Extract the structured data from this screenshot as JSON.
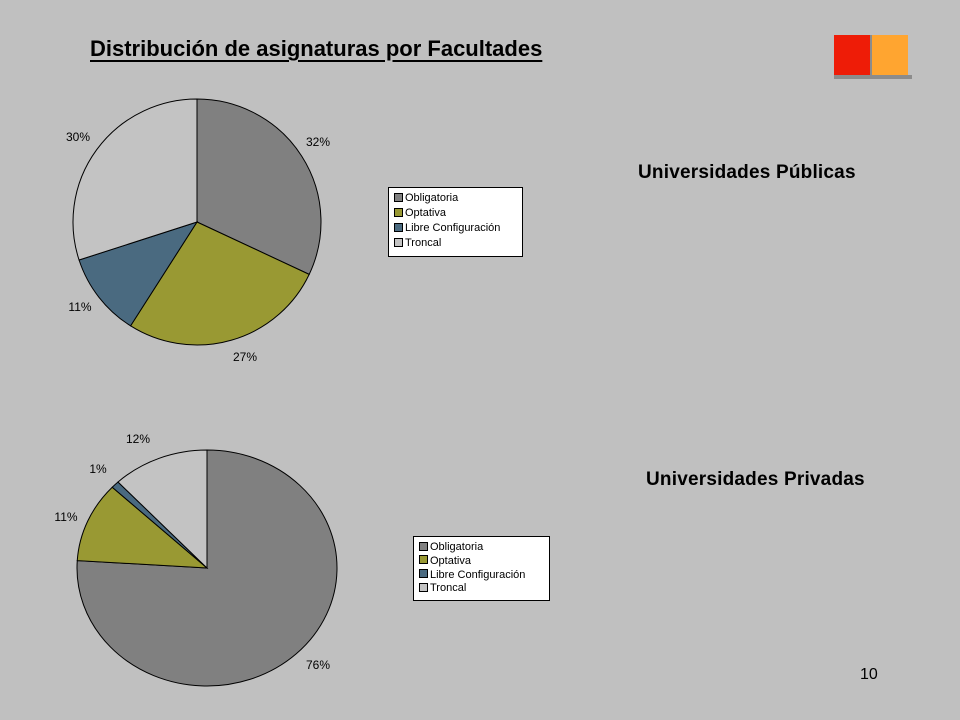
{
  "slide": {
    "title": "Distribución de asignaturas por Facultades",
    "page_number": "10"
  },
  "colors": {
    "background": "#c0c0c0",
    "obligatoria": "#808080",
    "optativa": "#999933",
    "libre": "#4a6a80",
    "troncal": "#c3c3c3",
    "logo_red": "#ee1c07",
    "logo_orange": "#ffa530"
  },
  "chart_data": [
    {
      "type": "pie",
      "title": "Universidades Públicas",
      "categories": [
        "Obligatoria",
        "Optativa",
        "Libre Configuración",
        "Troncal"
      ],
      "values": [
        32,
        27,
        11,
        30
      ],
      "value_labels": [
        "32%",
        "27%",
        "11%",
        "30%"
      ],
      "legend": "right"
    },
    {
      "type": "pie",
      "title": "Universidades Privadas",
      "categories": [
        "Obligatoria",
        "Optativa",
        "Libre Configuración",
        "Troncal"
      ],
      "values": [
        76,
        11,
        1,
        12
      ],
      "value_labels": [
        "76%",
        "11%",
        "1%",
        "12%"
      ],
      "legend": "right"
    }
  ]
}
